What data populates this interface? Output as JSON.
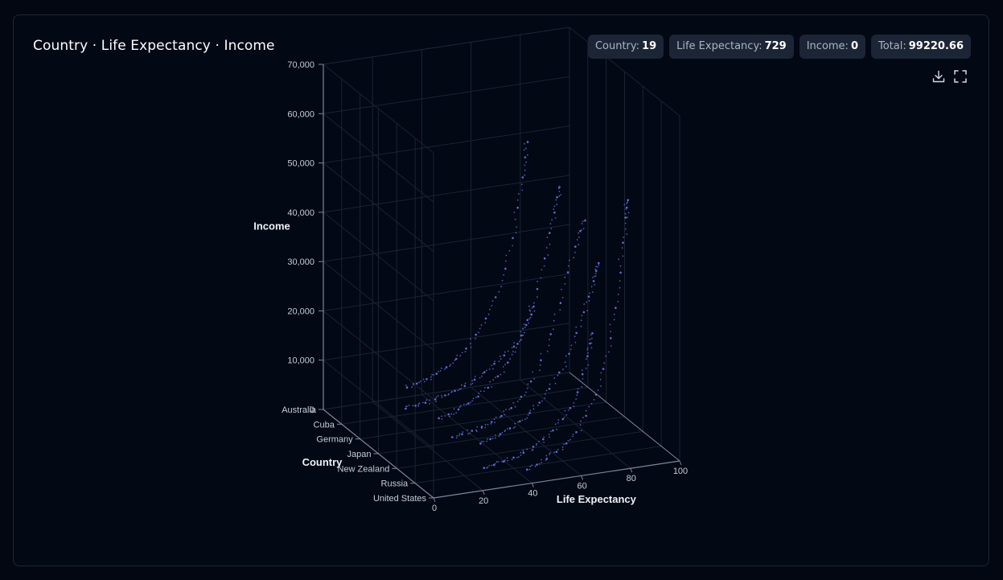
{
  "header": {
    "title": "Country · Life Expectancy · Income",
    "badges": [
      {
        "label": "Country:",
        "value": "19"
      },
      {
        "label": "Life Expectancy:",
        "value": "729"
      },
      {
        "label": "Income:",
        "value": "0"
      },
      {
        "label": "Total:",
        "value": "99220.66"
      }
    ]
  },
  "toolbar": {
    "download_icon": "download-icon",
    "fullscreen_icon": "fullscreen-icon"
  },
  "colors": {
    "point": "#5b6fd1",
    "axis": "#7d8697",
    "grid": "#1b2333",
    "text": "#c7ccd6"
  },
  "chart_data": {
    "type": "scatter3d",
    "title": "",
    "axes": {
      "x": {
        "label": "Life Expectancy",
        "range": [
          0,
          100
        ],
        "ticks": [
          "0",
          "20",
          "40",
          "60",
          "80",
          "100"
        ]
      },
      "y": {
        "label": "Country",
        "categories": [
          "Australia",
          "Cuba",
          "Germany",
          "Japan",
          "New Zealand",
          "Russia",
          "United States"
        ]
      },
      "z": {
        "label": "Income",
        "range": [
          0,
          70000
        ],
        "ticks": [
          "0",
          "10,000",
          "20,000",
          "30,000",
          "40,000",
          "50,000",
          "60,000",
          "70,000"
        ]
      }
    },
    "grid": true,
    "series": [
      {
        "country": "Australia",
        "points": [
          [
            34,
            1900
          ],
          [
            38,
            2400
          ],
          [
            42,
            3000
          ],
          [
            46,
            3800
          ],
          [
            50,
            4800
          ],
          [
            54,
            6200
          ],
          [
            58,
            8000
          ],
          [
            62,
            10500
          ],
          [
            66,
            13500
          ],
          [
            70,
            17500
          ],
          [
            74,
            23000
          ],
          [
            77,
            29000
          ],
          [
            79,
            35000
          ],
          [
            81,
            41000
          ],
          [
            82,
            45000
          ],
          [
            83,
            48000
          ]
        ]
      },
      {
        "country": "Cuba",
        "points": [
          [
            26,
            1200
          ],
          [
            30,
            1500
          ],
          [
            34,
            1800
          ],
          [
            38,
            2200
          ],
          [
            42,
            2700
          ],
          [
            46,
            3300
          ],
          [
            50,
            4000
          ],
          [
            54,
            5000
          ],
          [
            58,
            6200
          ],
          [
            62,
            7600
          ],
          [
            66,
            9000
          ],
          [
            70,
            10500
          ],
          [
            73,
            12500
          ],
          [
            75,
            14500
          ],
          [
            77,
            16500
          ],
          [
            78,
            18000
          ]
        ]
      },
      {
        "country": "Germany",
        "points": [
          [
            32,
            1800
          ],
          [
            36,
            2300
          ],
          [
            40,
            3000
          ],
          [
            44,
            3900
          ],
          [
            48,
            5000
          ],
          [
            52,
            6500
          ],
          [
            56,
            8500
          ],
          [
            60,
            11000
          ],
          [
            64,
            14500
          ],
          [
            68,
            19000
          ],
          [
            72,
            25000
          ],
          [
            75,
            31000
          ],
          [
            77,
            36000
          ],
          [
            79,
            40000
          ],
          [
            80,
            43000
          ],
          [
            81,
            45000
          ]
        ]
      },
      {
        "country": "Japan",
        "points": [
          [
            30,
            1100
          ],
          [
            34,
            1400
          ],
          [
            38,
            1800
          ],
          [
            42,
            2300
          ],
          [
            46,
            3000
          ],
          [
            50,
            3900
          ],
          [
            54,
            5200
          ],
          [
            58,
            7200
          ],
          [
            62,
            10000
          ],
          [
            66,
            14000
          ],
          [
            70,
            19000
          ],
          [
            74,
            25000
          ],
          [
            77,
            31000
          ],
          [
            80,
            36000
          ],
          [
            82,
            39000
          ],
          [
            84,
            41000
          ]
        ]
      },
      {
        "country": "New Zealand",
        "points": [
          [
            34,
            2500
          ],
          [
            38,
            3100
          ],
          [
            42,
            3800
          ],
          [
            46,
            4700
          ],
          [
            50,
            5800
          ],
          [
            54,
            7200
          ],
          [
            58,
            9000
          ],
          [
            62,
            11500
          ],
          [
            66,
            14500
          ],
          [
            70,
            18000
          ],
          [
            73,
            22000
          ],
          [
            76,
            26000
          ],
          [
            78,
            29000
          ],
          [
            80,
            32000
          ],
          [
            81,
            34000
          ],
          [
            82,
            35500
          ]
        ]
      },
      {
        "country": "Russia",
        "points": [
          [
            28,
            1000
          ],
          [
            32,
            1300
          ],
          [
            36,
            1700
          ],
          [
            40,
            2200
          ],
          [
            44,
            2900
          ],
          [
            48,
            3800
          ],
          [
            52,
            5000
          ],
          [
            56,
            6500
          ],
          [
            60,
            8500
          ],
          [
            63,
            10500
          ],
          [
            66,
            13500
          ],
          [
            68,
            17000
          ],
          [
            70,
            20500
          ],
          [
            71,
            23000
          ],
          [
            72,
            25000
          ]
        ]
      },
      {
        "country": "United States",
        "points": [
          [
            38,
            2900
          ],
          [
            42,
            3600
          ],
          [
            46,
            4500
          ],
          [
            50,
            5600
          ],
          [
            54,
            7000
          ],
          [
            58,
            9000
          ],
          [
            62,
            12000
          ],
          [
            66,
            16000
          ],
          [
            69,
            21000
          ],
          [
            72,
            27000
          ],
          [
            74,
            33000
          ],
          [
            76,
            40000
          ],
          [
            77,
            46000
          ],
          [
            78,
            51000
          ],
          [
            78.5,
            53000
          ],
          [
            79,
            54500
          ]
        ]
      }
    ]
  }
}
